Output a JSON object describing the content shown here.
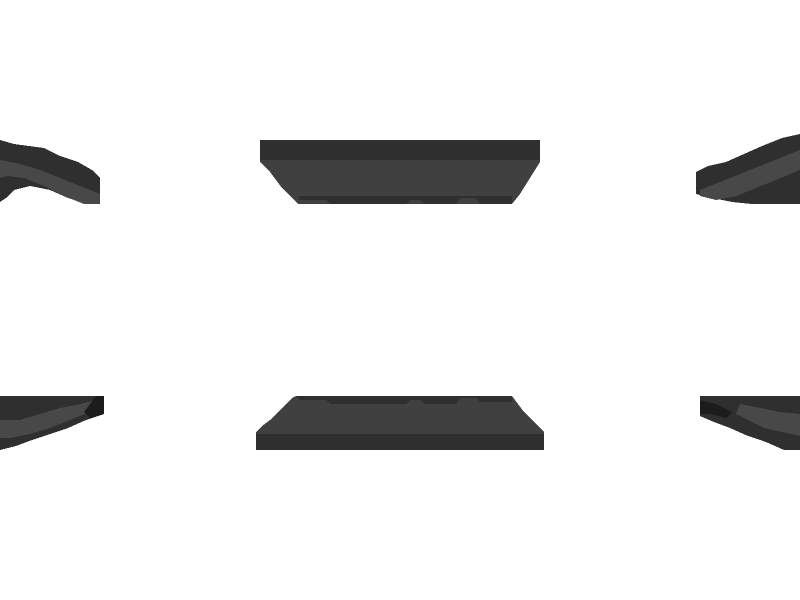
{
  "scene": {
    "background_color": "#ffffff",
    "palette": {
      "edge_dark": "#2f2f2f",
      "face_mid": "#404040",
      "face_light": "#484848",
      "shadow_black": "#1c1c1c"
    },
    "tiles": [
      {
        "name": "tile-top-center",
        "kind": "floating-block-top"
      },
      {
        "name": "tile-top-left",
        "kind": "wedge-left"
      },
      {
        "name": "tile-top-right",
        "kind": "wedge-right"
      },
      {
        "name": "tile-bottom-center",
        "kind": "floating-block-bottom"
      },
      {
        "name": "tile-bottom-left",
        "kind": "wedge-left"
      },
      {
        "name": "tile-bottom-right",
        "kind": "wedge-right"
      }
    ]
  }
}
